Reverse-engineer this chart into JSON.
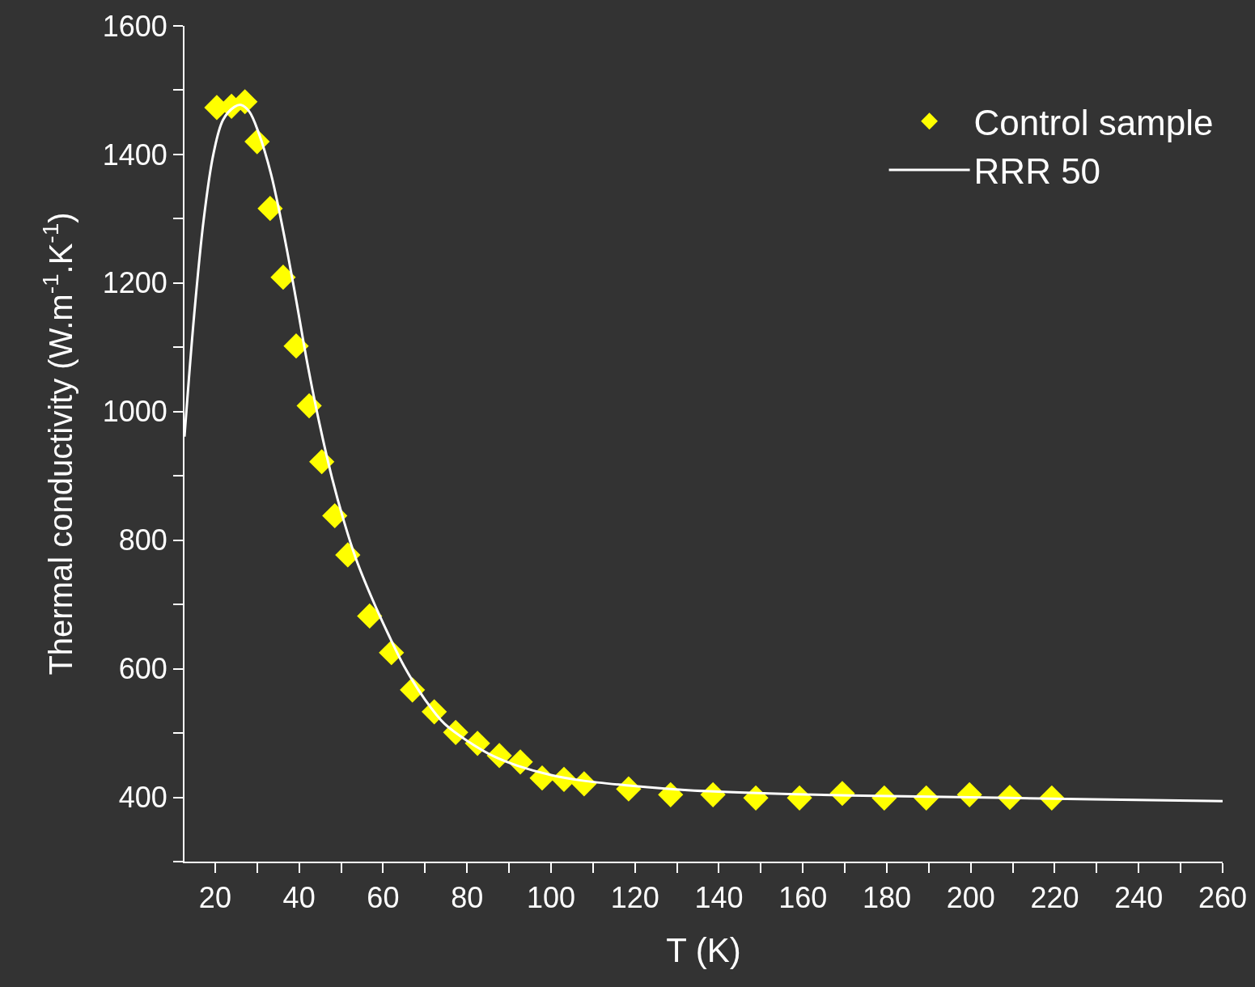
{
  "chart_data": {
    "type": "scatter",
    "xlabel": "T (K)",
    "ylabel": "Thermal conductivity (W.m$^{-1}$.K$^{-1}$)",
    "xlim": [
      12.7,
      260
    ],
    "ylim": [
      300,
      1600
    ],
    "xticks": [
      20,
      {
        "value": 30,
        "label": null
      },
      40,
      {
        "value": 50,
        "label": null
      },
      60,
      {
        "value": 70,
        "label": null
      },
      80,
      {
        "value": 90,
        "label": null
      },
      100,
      {
        "value": 110,
        "label": null
      },
      120,
      {
        "value": 130,
        "label": null
      },
      140,
      {
        "value": 150,
        "label": null
      },
      160,
      {
        "value": 170,
        "label": null
      },
      180,
      {
        "value": 190,
        "label": null
      },
      200,
      {
        "value": 210,
        "label": null
      },
      220,
      {
        "value": 230,
        "label": null
      },
      240,
      {
        "value": 250,
        "label": null
      },
      260
    ],
    "yticks": [
      {
        "value": 300,
        "label": null
      },
      400,
      {
        "value": 500,
        "label": null
      },
      600,
      {
        "value": 700,
        "label": null
      },
      800,
      {
        "value": 900,
        "label": null
      },
      1000,
      {
        "value": 1100,
        "label": null
      },
      1200,
      {
        "value": 1300,
        "label": null
      },
      1400,
      {
        "value": 1500,
        "label": null
      },
      1600
    ],
    "grid": false,
    "legend": "top right",
    "series": [
      {
        "name": "Control sample",
        "type": "scatter",
        "marker": "diamond",
        "color": "#ffff00",
        "x": [
          20.4,
          23.9,
          27.1,
          30,
          33.1,
          36.2,
          39.3,
          42.4,
          45.4,
          48.5,
          51.6,
          56.8,
          62,
          67,
          72.2,
          77.3,
          82.5,
          87.7,
          92.7,
          97.9,
          103.1,
          107.9,
          118.5,
          128.5,
          138.6,
          148.8,
          159.2,
          169.4,
          179.4,
          189.4,
          199.7,
          209.3,
          219.3
        ],
        "values": [
          1473,
          1475,
          1482,
          1420,
          1316,
          1209,
          1102,
          1009,
          922,
          838,
          777,
          682,
          625,
          567,
          533,
          501,
          484,
          465,
          455,
          430,
          428,
          421,
          413,
          404,
          404,
          399,
          399,
          406,
          399,
          399,
          404,
          400,
          399
        ]
      },
      {
        "name": "RRR 50",
        "type": "line",
        "marker": "none",
        "line_style": "solid",
        "color": "#ffffff",
        "x": [
          12.7,
          15,
          17.3,
          19.6,
          21.9,
          24.6,
          26.2,
          28.1,
          30.4,
          33.3,
          36.2,
          39.1,
          42,
          44.9,
          47.8,
          50.7,
          53.5,
          57.4,
          61.3,
          65.1,
          70,
          74.7,
          80.5,
          86.3,
          92.1,
          99.8,
          107.5,
          119.1,
          132.6,
          151.9,
          171.1,
          200,
          229,
          260
        ],
        "values": [
          961,
          1150,
          1300,
          1401,
          1454,
          1474,
          1477,
          1467,
          1433,
          1370,
          1282,
          1181,
          1074,
          980,
          898,
          829,
          772,
          709,
          653,
          603,
          552,
          514,
          486,
          464,
          449,
          435,
          426,
          418,
          411,
          406,
          403,
          400,
          397,
          394
        ]
      }
    ]
  }
}
